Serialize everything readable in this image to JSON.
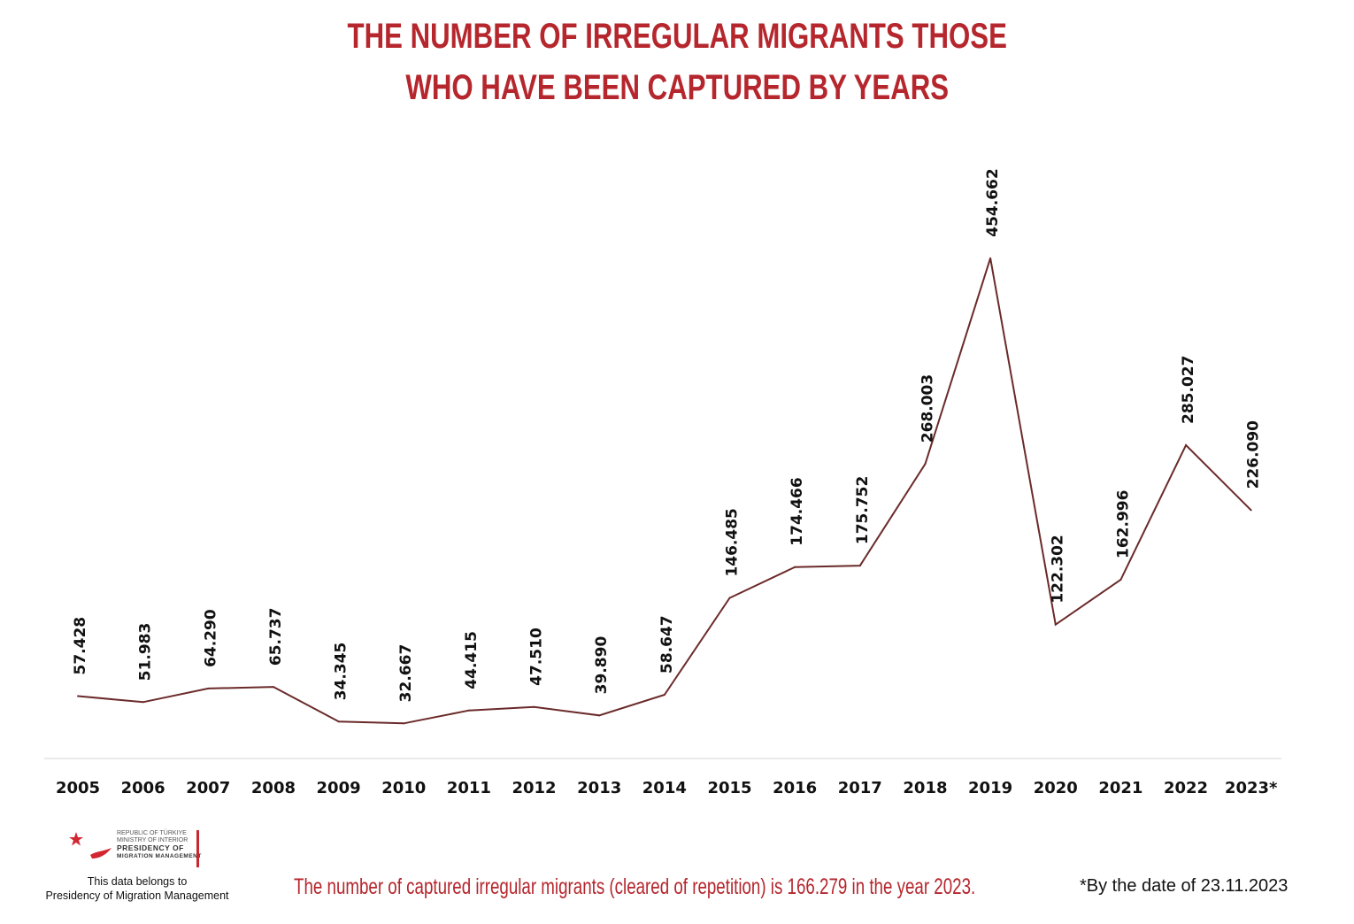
{
  "title": {
    "line1": "THE NUMBER OF IRREGULAR MIGRANTS THOSE",
    "line2": "WHO HAVE BEEN CAPTURED BY YEARS"
  },
  "colors": {
    "title": "#b5262d",
    "line": "#6b2a2a",
    "axis": "#e3e3e3",
    "text": "#111111"
  },
  "chart_data": {
    "type": "line",
    "title": "THE NUMBER OF IRREGULAR MIGRANTS THOSE WHO HAVE BEEN CAPTURED BY YEARS",
    "xlabel": "",
    "ylabel": "",
    "grid": false,
    "categories": [
      "2005",
      "2006",
      "2007",
      "2008",
      "2009",
      "2010",
      "2011",
      "2012",
      "2013",
      "2014",
      "2015",
      "2016",
      "2017",
      "2018",
      "2019",
      "2020",
      "2021",
      "2022",
      "2023*"
    ],
    "values": [
      57428,
      51983,
      64290,
      65737,
      34345,
      32667,
      44415,
      47510,
      39890,
      58647,
      146485,
      174466,
      175752,
      268003,
      454662,
      122302,
      162996,
      285027,
      226090
    ],
    "data_labels": [
      "57.428",
      "51.983",
      "64.290",
      "65.737",
      "34.345",
      "32.667",
      "44.415",
      "47.510",
      "39.890",
      "58.647",
      "146.485",
      "174.466",
      "175.752",
      "268.003",
      "454.662",
      "122.302",
      "162.996",
      "285.027",
      "226.090"
    ]
  },
  "logo": {
    "line1": "REPUBLIC OF TÜRKIYE",
    "line2": "MINISTRY OF INTERIOR",
    "line3": "PRESIDENCY OF",
    "line4": "MIGRATION MANAGEMENT",
    "icon": "crescent-star-bird-icon"
  },
  "owner_note": {
    "line1": "This data belongs to",
    "line2": "Presidency of Migration Management"
  },
  "footnote_main": "The number of captured irregular migrants (cleared of repetition) is 166.279 in the year 2023.",
  "footnote_date": "*By the date of 23.11.2023"
}
